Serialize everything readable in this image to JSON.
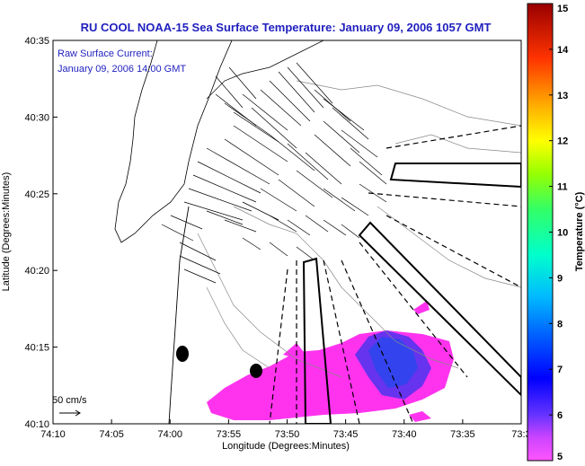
{
  "title": "RU COOL  NOAA-15  Sea Surface Temperature:  January 09, 2006 1057 GMT",
  "current_label": "Raw Surface Current:",
  "current_time": "January 09, 2006 14:00 GMT",
  "scale_label": "50 cm/s",
  "xlabel": "Longitude (Degrees:Minutes)",
  "ylabel": "Latitude (Degrees:Minutes)",
  "colorbar_label": "Temperature (°C)",
  "x_ticks": [
    "74:10",
    "74:05",
    "74:00",
    "73:55",
    "73:50",
    "73:45",
    "73:40",
    "73:35",
    "73:3"
  ],
  "y_ticks": [
    "40:35",
    "40:30",
    "40:25",
    "40:20",
    "40:15",
    "40:10"
  ],
  "colorbar_ticks": [
    "15",
    "14",
    "13",
    "12",
    "11",
    "10",
    "9",
    "8",
    "7",
    "6",
    "5"
  ],
  "colors": {
    "title": "#1f1fbf",
    "warm_pixels": "#ff33ee",
    "cold_pixels": "#3344ee"
  }
}
